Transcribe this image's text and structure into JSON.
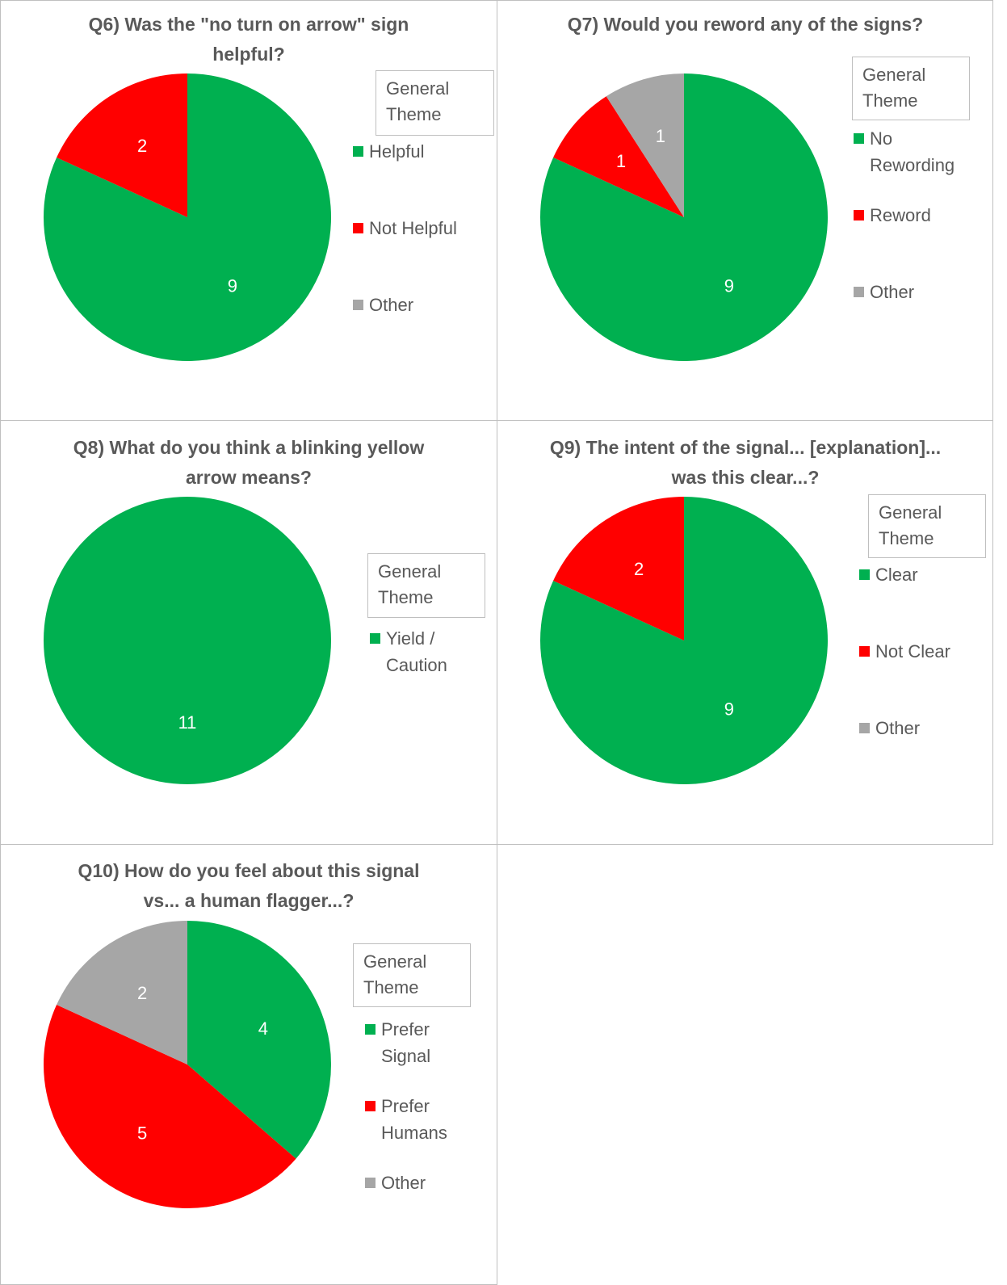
{
  "chart_data": [
    {
      "type": "pie",
      "title": "Q6) Was the \"no turn on arrow\" sign helpful?",
      "legend_title": "General Theme",
      "categories": [
        "Helpful",
        "Not Helpful",
        "Other"
      ],
      "values": [
        9,
        2,
        0
      ],
      "colors": [
        "#00b050",
        "#ff0000",
        "#a6a6a6"
      ]
    },
    {
      "type": "pie",
      "title": "Q7) Would you reword any of the signs?",
      "legend_title": "General Theme",
      "categories": [
        "No Rewording",
        "Reword",
        "Other"
      ],
      "values": [
        9,
        1,
        1
      ],
      "colors": [
        "#00b050",
        "#ff0000",
        "#a6a6a6"
      ]
    },
    {
      "type": "pie",
      "title": "Q8) What do you think a blinking yellow arrow means?",
      "legend_title": "General Theme",
      "categories": [
        "Yield / Caution"
      ],
      "values": [
        11
      ],
      "colors": [
        "#00b050"
      ]
    },
    {
      "type": "pie",
      "title": "Q9) The intent of the signal... [explanation]... was this clear...?",
      "legend_title": "General Theme",
      "categories": [
        "Clear",
        "Not Clear",
        "Other"
      ],
      "values": [
        9,
        2,
        0
      ],
      "colors": [
        "#00b050",
        "#ff0000",
        "#a6a6a6"
      ]
    },
    {
      "type": "pie",
      "title": "Q10) How do you feel about this signal vs... a human flagger...?",
      "legend_title": "General Theme",
      "categories": [
        "Prefer Signal",
        "Prefer Humans",
        "Other"
      ],
      "values": [
        4,
        5,
        2
      ],
      "colors": [
        "#00b050",
        "#ff0000",
        "#a6a6a6"
      ]
    }
  ]
}
